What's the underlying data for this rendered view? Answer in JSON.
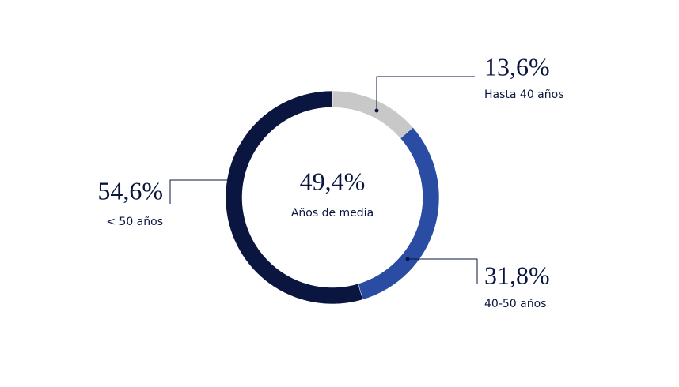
{
  "chart_data": {
    "type": "donut",
    "categories": [
      "Hasta 40 años",
      "40-50 años",
      "< 50 años"
    ],
    "values": [
      13.6,
      31.8,
      54.6
    ],
    "value_labels": [
      "13,6%",
      "31,8%",
      "54,6%"
    ],
    "colors": [
      "#c8c8c8",
      "#2a4ca3",
      "#0b1640"
    ],
    "center_value": "49,4%",
    "center_label": "Años de media"
  }
}
